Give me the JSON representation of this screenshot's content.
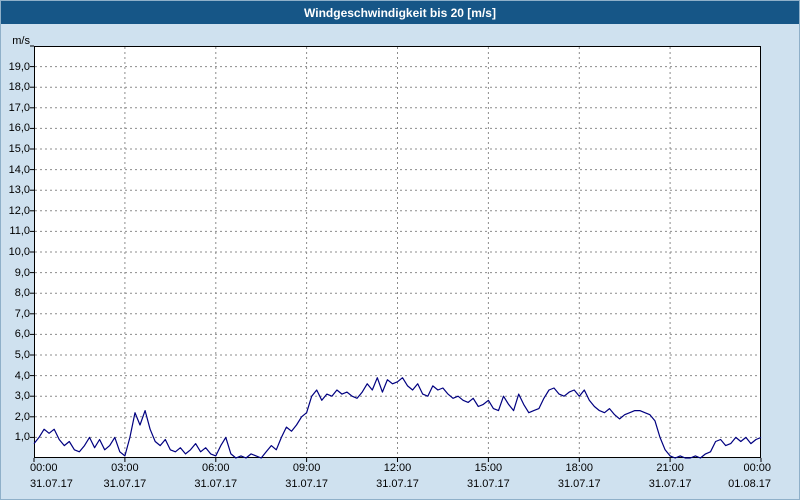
{
  "title": "Windgeschwindigkeit bis 20 [m/s]",
  "colors": {
    "titlebar_bg": "#165687",
    "titlebar_text": "#ffffff",
    "page_bg": "#cfe1ef",
    "plot_bg": "#ffffff",
    "grid": "#8c8c8c",
    "axis": "#000000",
    "series": "#000080"
  },
  "chart_data": {
    "type": "line",
    "title": "Windgeschwindigkeit bis 20 [m/s]",
    "ylabel": "m/s",
    "ylim": [
      0,
      20
    ],
    "y_step": 1,
    "y_tick_labels": [
      "19,0",
      "18,0",
      "17,0",
      "16,0",
      "15,0",
      "14,0",
      "13,0",
      "12,0",
      "11,0",
      "10,0",
      "9,0",
      "8,0",
      "7,0",
      "6,0",
      "5,0",
      "4,0",
      "3,0",
      "2,0",
      "1,0"
    ],
    "y_unit_label": "m/s",
    "x_range_hours": [
      0,
      24
    ],
    "x_ticks": [
      {
        "time": "00:00",
        "date": "31.07.17"
      },
      {
        "time": "03:00",
        "date": "31.07.17"
      },
      {
        "time": "06:00",
        "date": "31.07.17"
      },
      {
        "time": "09:00",
        "date": "31.07.17"
      },
      {
        "time": "12:00",
        "date": "31.07.17"
      },
      {
        "time": "15:00",
        "date": "31.07.17"
      },
      {
        "time": "18:00",
        "date": "31.07.17"
      },
      {
        "time": "21:00",
        "date": "31.07.17"
      },
      {
        "time": "00:00",
        "date": "01.08.17"
      }
    ],
    "grid": "dashed",
    "legend": "none",
    "sample_interval_minutes": 10,
    "series": [
      {
        "name": "Windgeschwindigkeit",
        "values": [
          0.7,
          1.0,
          1.4,
          1.2,
          1.4,
          0.9,
          0.6,
          0.8,
          0.4,
          0.3,
          0.6,
          1.0,
          0.5,
          0.9,
          0.4,
          0.6,
          1.0,
          0.3,
          0.1,
          1.0,
          2.2,
          1.6,
          2.3,
          1.4,
          0.8,
          0.6,
          0.9,
          0.4,
          0.3,
          0.5,
          0.2,
          0.4,
          0.7,
          0.3,
          0.5,
          0.2,
          0.1,
          0.6,
          1.0,
          0.2,
          0.0,
          0.1,
          0.0,
          0.2,
          0.1,
          0.0,
          0.3,
          0.6,
          0.4,
          1.0,
          1.5,
          1.3,
          1.6,
          2.0,
          2.2,
          3.0,
          3.3,
          2.8,
          3.1,
          3.0,
          3.3,
          3.1,
          3.2,
          3.0,
          2.9,
          3.2,
          3.6,
          3.3,
          3.9,
          3.2,
          3.8,
          3.6,
          3.7,
          3.9,
          3.5,
          3.3,
          3.6,
          3.1,
          3.0,
          3.5,
          3.3,
          3.4,
          3.1,
          2.9,
          3.0,
          2.8,
          2.7,
          2.9,
          2.5,
          2.6,
          2.8,
          2.4,
          2.3,
          3.0,
          2.6,
          2.3,
          3.1,
          2.6,
          2.2,
          2.3,
          2.4,
          2.9,
          3.3,
          3.4,
          3.1,
          3.0,
          3.2,
          3.3,
          3.0,
          3.3,
          2.8,
          2.5,
          2.3,
          2.2,
          2.4,
          2.1,
          1.9,
          2.1,
          2.2,
          2.3,
          2.3,
          2.2,
          2.1,
          1.8,
          1.0,
          0.4,
          0.1,
          0.0,
          0.1,
          0.0,
          0.0,
          0.1,
          0.0,
          0.2,
          0.3,
          0.8,
          0.9,
          0.6,
          0.7,
          1.0,
          0.8,
          1.0,
          0.7,
          0.9,
          1.0
        ]
      }
    ]
  }
}
